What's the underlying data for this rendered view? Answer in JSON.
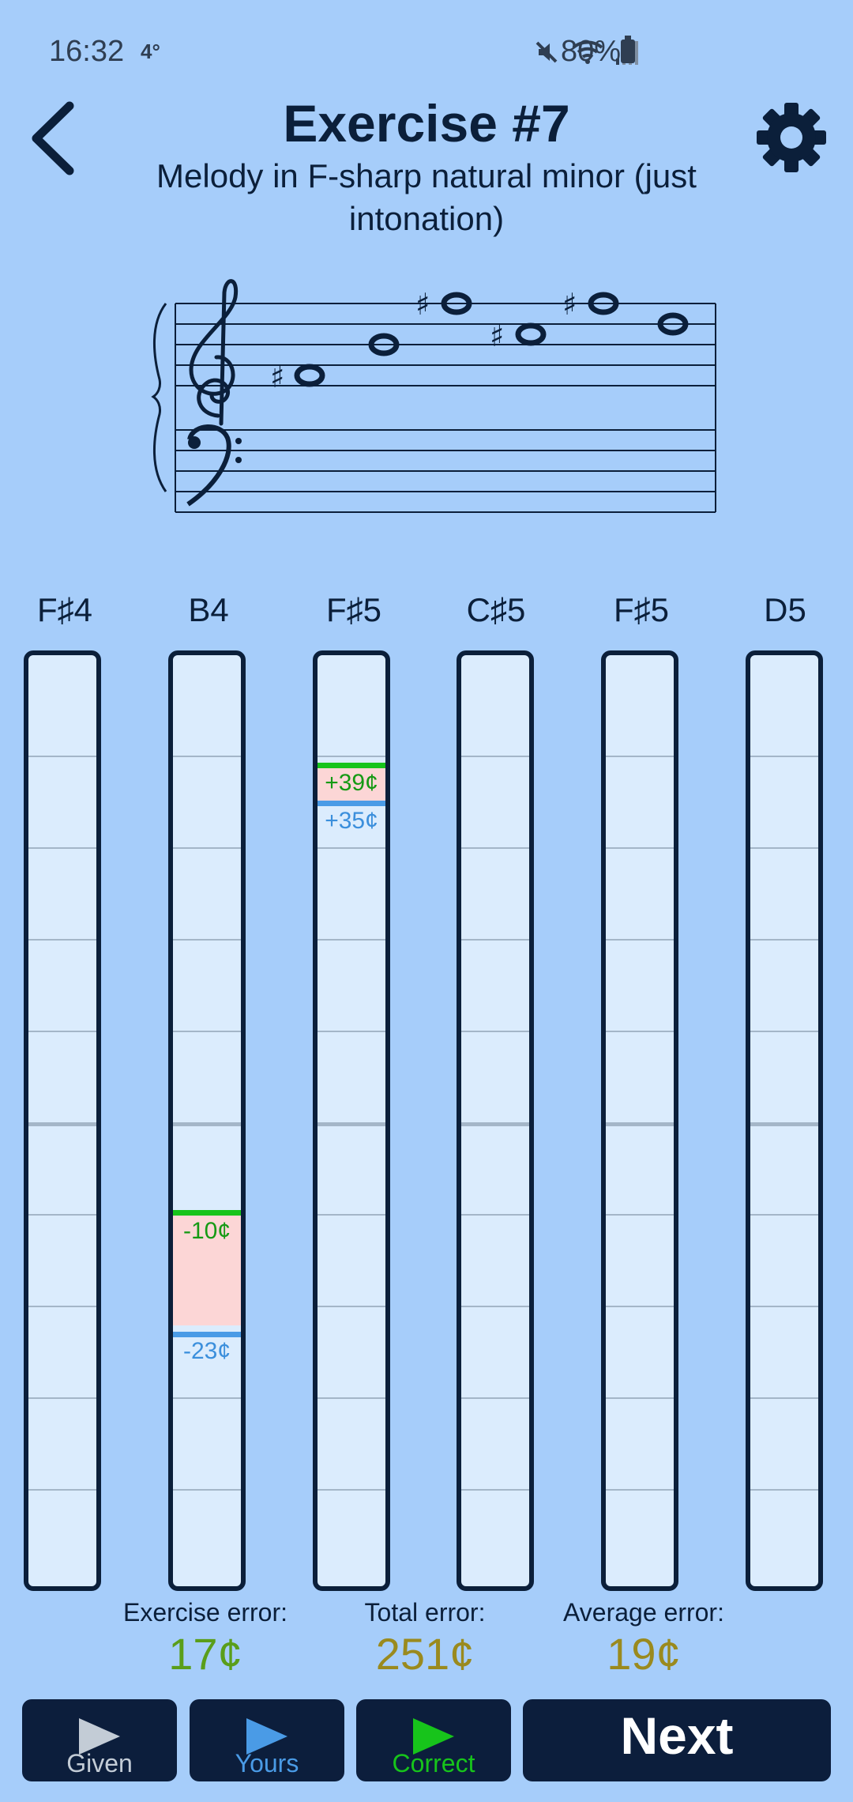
{
  "status_bar": {
    "time": "16:32",
    "temperature": "4°",
    "battery": "80%"
  },
  "header": {
    "title": "Exercise #7",
    "subtitle": "Melody in F-sharp natural minor (just intonation)"
  },
  "notes": [
    {
      "label": "F♯4"
    },
    {
      "label": "B4"
    },
    {
      "label": "F♯5"
    },
    {
      "label": "C♯5"
    },
    {
      "label": "F♯5"
    },
    {
      "label": "D5"
    }
  ],
  "deviations": {
    "b4": {
      "correct": "-10¢",
      "yours": "-23¢"
    },
    "fs5": {
      "correct": "+39¢",
      "yours": "+35¢"
    }
  },
  "stats": {
    "exercise_label": "Exercise error:",
    "exercise_value": "17¢",
    "total_label": "Total error:",
    "total_value": "251¢",
    "average_label": "Average error:",
    "average_value": "19¢"
  },
  "buttons": {
    "given": "Given",
    "yours": "Yours",
    "correct": "Correct",
    "next": "Next"
  },
  "colors": {
    "background": "#a6cdfa",
    "navy": "#0c1e3c",
    "correct_green": "#17c41b",
    "yours_blue": "#4a9be6",
    "error_fill": "#fcd6d6",
    "stat_green": "#5a9e1a",
    "stat_olive": "#9a8a1e"
  }
}
